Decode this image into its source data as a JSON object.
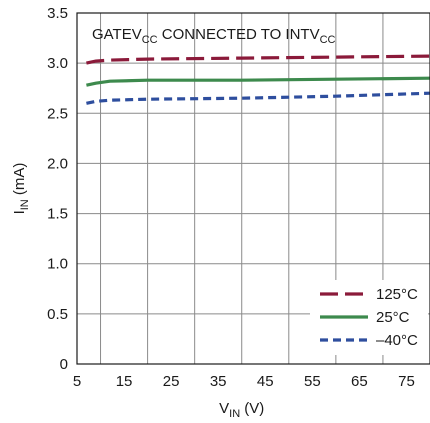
{
  "chart_data": {
    "type": "line",
    "title": "",
    "annotation": {
      "parts": [
        {
          "text": "GATEV",
          "sub": false
        },
        {
          "text": "CC",
          "sub": true
        },
        {
          "text": " CONNECTED TO INTV",
          "sub": false
        },
        {
          "text": "CC",
          "sub": true
        }
      ]
    },
    "xlabel": {
      "main": "V",
      "sub": "IN",
      "unit": " (V)"
    },
    "ylabel": {
      "main": "I",
      "sub": "IN",
      "unit": " (mA)"
    },
    "xlim": [
      5,
      80
    ],
    "ylim": [
      0,
      3.5
    ],
    "xticks": [
      5,
      15,
      25,
      35,
      45,
      55,
      65,
      75
    ],
    "yticks": [
      0,
      0.5,
      1.0,
      1.5,
      2.0,
      2.5,
      3.0,
      3.5
    ],
    "ytick_labels": [
      "0",
      "0.5",
      "1.0",
      "1.5",
      "2.0",
      "2.5",
      "3.0",
      "3.5"
    ],
    "grid": true,
    "legend_position": "bottom-right",
    "series": [
      {
        "name": "125°C",
        "color": "#8b1a3a",
        "dash": "long-dash",
        "x": [
          7,
          9,
          12,
          20,
          40,
          60,
          80
        ],
        "y": [
          3.0,
          3.02,
          3.03,
          3.04,
          3.05,
          3.06,
          3.07
        ]
      },
      {
        "name": "25°C",
        "color": "#3d8a4d",
        "dash": "solid",
        "x": [
          7,
          9,
          12,
          20,
          40,
          60,
          80
        ],
        "y": [
          2.78,
          2.8,
          2.82,
          2.83,
          2.83,
          2.84,
          2.85
        ]
      },
      {
        "name": "–40°C",
        "color": "#2e4e9e",
        "dash": "short-dash",
        "x": [
          7,
          9,
          12,
          20,
          40,
          60,
          80
        ],
        "y": [
          2.6,
          2.62,
          2.63,
          2.64,
          2.65,
          2.67,
          2.7
        ]
      }
    ]
  }
}
